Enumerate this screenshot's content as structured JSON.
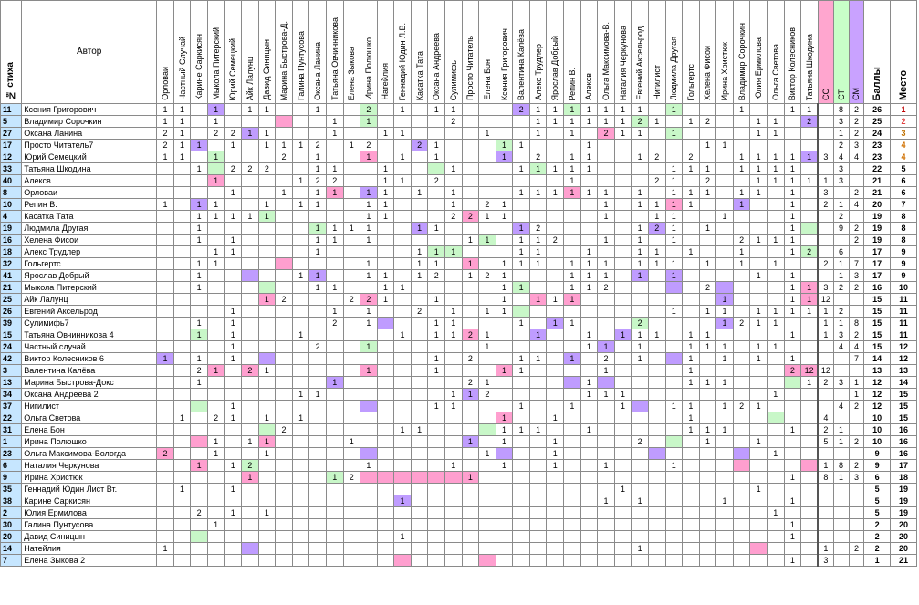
{
  "headers": {
    "num": "№ стиха",
    "author": "Автор",
    "judges": [
      "Орловаи",
      "Частный Случай",
      "Карине Саркисян",
      "Мыкола Питерский",
      "Юрий Семецкий",
      "Айк Лалунц",
      "Давид Синицын",
      "Марина Быстрова-Д.",
      "Галина Пунтусова",
      "Оксана Ланина",
      "Татьяна Овчинникова",
      "Елена Зыкова",
      "Ирина Полюшко",
      "Натейлия",
      "Геннадий Юдин Л.В.",
      "Касатка Тата",
      "Оксана Андреева",
      "Сулимифь",
      "Просто Читатель",
      "Елена Бон",
      "Ксения Григорович",
      "Валентина Калёва",
      "Алекс Трудлер",
      "Ярослав Добрый",
      "Репин В.",
      "Алексв",
      "Ольга Максимова-В.",
      "Наталия Черкунова",
      "Евгений Аксельрод",
      "Нигилист",
      "Людмила Другая",
      "Гольгертс",
      "Хелена Фисои",
      "Ирина Христюк",
      "Владимир Сорочкин",
      "Юлия Ермилова",
      "Ольга Светова",
      "Виктор Колесников",
      "Татьяна Шкодина"
    ],
    "cc": "СС",
    "ct": "СТ",
    "cm": "СМ",
    "sum": "Баллы",
    "place": "Место"
  },
  "rows": [
    {
      "n": "11",
      "a": "Ксения Григорович",
      "s": "26",
      "p": "1",
      "cc": "",
      "ct": "8",
      "cm": "2",
      "cells": {
        "0": "1",
        "1": "1",
        "3": "1",
        "5": "1",
        "6": "1",
        "9": "1",
        "12": "2",
        "14": "1",
        "16": "1",
        "17": "1",
        "21": "2",
        "22": "1",
        "23": "1",
        "24": "1",
        "25": "1",
        "26": "1",
        "27": "1",
        "28": "1",
        "30": "1",
        "34": "1",
        "37": "1",
        "38": "1"
      },
      "cls": {
        "3": "v",
        "12": "g",
        "21": "v",
        "24": "g",
        "30": "g"
      }
    },
    {
      "n": "5",
      "a": "Владимир Сорочкин",
      "s": "25",
      "p": "2",
      "cc": "",
      "ct": "3",
      "cm": "2",
      "cells": {
        "0": "1",
        "1": "1",
        "3": "1",
        "10": "1",
        "12": "1",
        "17": "2",
        "22": "1",
        "23": "1",
        "24": "1",
        "25": "1",
        "26": "1",
        "27": "1",
        "28": "2",
        "29": "1",
        "31": "1",
        "32": "2",
        "35": "1",
        "36": "1",
        "38": "2"
      },
      "cls": {
        "7": "p",
        "12": "g",
        "28": "g",
        "38": "v"
      }
    },
    {
      "n": "27",
      "a": "Оксана Ланина",
      "s": "24",
      "p": "3",
      "cc": "",
      "ct": "1",
      "cm": "2",
      "cells": {
        "0": "2",
        "1": "1",
        "3": "2",
        "4": "2",
        "5": "1",
        "6": "1",
        "10": "1",
        "13": "1",
        "14": "1",
        "19": "1",
        "22": "1",
        "24": "1",
        "26": "2",
        "27": "1",
        "28": "1",
        "30": "1",
        "35": "1",
        "36": "1"
      },
      "cls": {
        "5": "v",
        "26": "p",
        "30": "g"
      }
    },
    {
      "n": "17",
      "a": "Просто Читатель7",
      "s": "23",
      "p": "4",
      "cc": "",
      "ct": "2",
      "cm": "3",
      "cells": {
        "0": "2",
        "1": "1",
        "2": "1",
        "4": "1",
        "6": "1",
        "7": "1",
        "8": "1",
        "9": "2",
        "11": "1",
        "12": "2",
        "15": "2",
        "16": "1",
        "20": "1",
        "21": "1",
        "25": "1",
        "32": "1",
        "33": "1"
      },
      "cls": {
        "2": "v",
        "15": "v",
        "20": "g"
      }
    },
    {
      "n": "12",
      "a": "Юрий Семецкий",
      "s": "23",
      "p": "4",
      "cc": "3",
      "ct": "4",
      "cm": "4",
      "cells": {
        "0": "1",
        "1": "1",
        "3": "1",
        "7": "2",
        "9": "1",
        "12": "1",
        "14": "1",
        "16": "1",
        "20": "1",
        "22": "2",
        "24": "1",
        "25": "1",
        "28": "1",
        "29": "2",
        "31": "2",
        "34": "1",
        "35": "1",
        "36": "1",
        "37": "1",
        "38": "1"
      },
      "cls": {
        "3": "g",
        "12": "p",
        "20": "v",
        "38": "v"
      }
    },
    {
      "n": "33",
      "a": "Татьяна Шкодина",
      "s": "22",
      "p": "5",
      "cc": "",
      "ct": "3",
      "cm": "",
      "cells": {
        "2": "1",
        "4": "2",
        "5": "2",
        "6": "2",
        "9": "1",
        "10": "1",
        "13": "1",
        "17": "1",
        "21": "1",
        "22": "1",
        "23": "1",
        "24": "1",
        "25": "1",
        "30": "1",
        "31": "1",
        "32": "1",
        "34": "1",
        "35": "1",
        "36": "1",
        "37": "1"
      },
      "cls": {
        "3": "g",
        "16": "g",
        "22": "g"
      }
    },
    {
      "n": "40",
      "a": "Алексв",
      "s": "21",
      "p": "6",
      "cc": "1",
      "ct": "3",
      "cm": "",
      "cells": {
        "3": "1",
        "8": "1",
        "9": "2",
        "10": "2",
        "13": "1",
        "14": "1",
        "16": "2",
        "24": "1",
        "29": "2",
        "30": "1",
        "32": "2",
        "35": "1",
        "36": "1",
        "37": "1",
        "38": "1"
      },
      "cls": {
        "3": "p"
      }
    },
    {
      "n": "8",
      "a": "Орловаи",
      "s": "21",
      "p": "6",
      "cc": "3",
      "ct": "",
      "cm": "2",
      "cells": {
        "4": "1",
        "7": "1",
        "9": "1",
        "10": "1",
        "12": "1",
        "13": "1",
        "15": "1",
        "17": "1",
        "21": "1",
        "22": "1",
        "23": "1",
        "24": "1",
        "25": "1",
        "26": "1",
        "28": "1",
        "30": "1",
        "31": "1",
        "32": "1",
        "34": "1",
        "35": "1",
        "37": "1"
      },
      "cls": {
        "10": "p",
        "12": "v",
        "24": "p"
      }
    },
    {
      "n": "10",
      "a": "Репин В.",
      "s": "20",
      "p": "7",
      "cc": "2",
      "ct": "1",
      "cm": "4",
      "cells": {
        "0": "1",
        "2": "1",
        "3": "1",
        "6": "1",
        "8": "1",
        "9": "1",
        "12": "1",
        "13": "1",
        "17": "1",
        "19": "2",
        "20": "1",
        "26": "1",
        "28": "1",
        "29": "1",
        "30": "1",
        "31": "1",
        "34": "1",
        "37": "1"
      },
      "cls": {
        "2": "v",
        "30": "p",
        "34": "v"
      }
    },
    {
      "n": "4",
      "a": "Касатка Тата",
      "s": "19",
      "p": "8",
      "cc": "",
      "ct": "2",
      "cm": "",
      "cells": {
        "2": "1",
        "3": "1",
        "4": "1",
        "5": "1",
        "6": "1",
        "12": "1",
        "13": "1",
        "17": "2",
        "18": "2",
        "19": "1",
        "20": "1",
        "26": "1",
        "29": "1",
        "30": "1",
        "33": "1",
        "37": "1"
      },
      "cls": {
        "6": "g",
        "18": "p"
      }
    },
    {
      "n": "19",
      "a": "Людмила Другая",
      "s": "19",
      "p": "8",
      "cc": "",
      "ct": "9",
      "cm": "2",
      "cells": {
        "2": "1",
        "9": "1",
        "10": "1",
        "11": "1",
        "12": "1",
        "15": "1",
        "16": "1",
        "21": "1",
        "22": "2",
        "28": "1",
        "29": "2",
        "30": "1",
        "32": "1",
        "37": "1"
      },
      "cls": {
        "9": "g",
        "15": "v",
        "21": "v",
        "29": "v",
        "38": "g",
        "39": "g"
      }
    },
    {
      "n": "16",
      "a": "Хелена Фисои",
      "s": "19",
      "p": "8",
      "cc": "",
      "ct": "",
      "cm": "2",
      "cells": {
        "2": "1",
        "4": "1",
        "9": "1",
        "10": "1",
        "12": "1",
        "18": "1",
        "19": "1",
        "21": "1",
        "22": "1",
        "23": "2",
        "26": "1",
        "28": "1",
        "30": "1",
        "34": "2",
        "35": "1",
        "36": "1",
        "37": "1"
      },
      "cls": {
        "19": "g"
      }
    },
    {
      "n": "18",
      "a": "Алекс Трудлер",
      "s": "17",
      "p": "9",
      "cc": "",
      "ct": "6",
      "cm": "",
      "cells": {
        "3": "1",
        "4": "1",
        "9": "1",
        "15": "1",
        "16": "1",
        "17": "1",
        "21": "1",
        "22": "1",
        "25": "1",
        "28": "1",
        "29": "1",
        "31": "1",
        "34": "1",
        "37": "1",
        "38": "2"
      },
      "cls": {
        "16": "g",
        "17": "g",
        "38": "g"
      }
    },
    {
      "n": "32",
      "a": "Гольгертс",
      "s": "17",
      "p": "9",
      "cc": "2",
      "ct": "1",
      "cm": "7",
      "cells": {
        "2": "1",
        "3": "1",
        "12": "1",
        "15": "1",
        "16": "1",
        "18": "1",
        "20": "1",
        "21": "1",
        "22": "1",
        "24": "1",
        "25": "1",
        "26": "1",
        "28": "1",
        "29": "1",
        "30": "1",
        "32": "1",
        "34": "1",
        "36": "1"
      },
      "cls": {
        "7": "p",
        "18": "p"
      }
    },
    {
      "n": "41",
      "a": "Ярослав Добрый",
      "s": "17",
      "p": "9",
      "cc": "",
      "ct": "1",
      "cm": "3",
      "cells": {
        "2": "1",
        "8": "1",
        "9": "1",
        "12": "1",
        "13": "1",
        "15": "1",
        "16": "2",
        "18": "1",
        "19": "2",
        "20": "1",
        "24": "1",
        "25": "1",
        "26": "1",
        "28": "1",
        "30": "1",
        "35": "1",
        "37": "1"
      },
      "cls": {
        "5": "v",
        "9": "v",
        "28": "v",
        "30": "v"
      }
    },
    {
      "n": "21",
      "a": "Мыкола Питерский",
      "s": "16",
      "p": "10",
      "cc": "3",
      "ct": "2",
      "cm": "2",
      "cells": {
        "2": "1",
        "9": "1",
        "10": "1",
        "13": "1",
        "14": "1",
        "20": "1",
        "21": "1",
        "24": "1",
        "25": "1",
        "26": "2",
        "32": "2",
        "37": "1",
        "38": "1"
      },
      "cls": {
        "6": "g",
        "21": "g",
        "30": "v",
        "33": "v",
        "38": "p"
      }
    },
    {
      "n": "25",
      "a": "Айк Лалунц",
      "s": "15",
      "p": "11",
      "cc": "12",
      "ct": "",
      "cm": "",
      "cells": {
        "6": "1",
        "7": "2",
        "11": "2",
        "12": "2",
        "13": "1",
        "16": "1",
        "20": "1",
        "22": "1",
        "23": "1",
        "24": "1",
        "33": "1",
        "37": "1",
        "38": "1"
      },
      "cls": {
        "6": "p",
        "12": "p",
        "22": "p",
        "24": "p",
        "33": "v",
        "38": "p"
      }
    },
    {
      "n": "26",
      "a": "Евгений Аксельрод",
      "s": "15",
      "p": "11",
      "cc": "1",
      "ct": "2",
      "cm": "",
      "cells": {
        "4": "1",
        "10": "1",
        "12": "1",
        "15": "2",
        "17": "1",
        "19": "1",
        "20": "1",
        "30": "1",
        "32": "1",
        "33": "1",
        "35": "1",
        "36": "1",
        "37": "1",
        "38": "1"
      },
      "cls": {
        "21": "g"
      }
    },
    {
      "n": "39",
      "a": "Сулимифь7",
      "s": "15",
      "p": "11",
      "cc": "1",
      "ct": "1",
      "cm": "8",
      "cells": {
        "2": "1",
        "4": "1",
        "10": "2",
        "12": "1",
        "16": "1",
        "17": "1",
        "21": "1",
        "23": "1",
        "24": "1",
        "28": "2",
        "33": "1",
        "34": "2",
        "35": "1",
        "36": "1"
      },
      "cls": {
        "13": "v",
        "23": "v",
        "28": "g",
        "33": "v",
        "39": "v"
      }
    },
    {
      "n": "15",
      "a": "Татьяна Овчинникова 4",
      "s": "15",
      "p": "11",
      "cc": "1",
      "ct": "3",
      "cm": "2",
      "cells": {
        "2": "1",
        "4": "1",
        "8": "1",
        "14": "1",
        "16": "1",
        "17": "1",
        "18": "2",
        "19": "1",
        "22": "1",
        "25": "1",
        "27": "1",
        "28": "1",
        "29": "1",
        "31": "1",
        "32": "1",
        "37": "1"
      },
      "cls": {
        "2": "g",
        "18": "p",
        "22": "v",
        "27": "v"
      }
    },
    {
      "n": "24",
      "a": "Частный случай",
      "s": "15",
      "p": "12",
      "cc": "",
      "ct": "4",
      "cm": "4",
      "cells": {
        "4": "1",
        "9": "2",
        "12": "1",
        "19": "1",
        "25": "1",
        "26": "1",
        "28": "1",
        "31": "1",
        "32": "1",
        "33": "1",
        "35": "1",
        "36": "1"
      },
      "cls": {
        "12": "g",
        "26": "v"
      }
    },
    {
      "n": "42",
      "a": "Виктор Колесников 6",
      "s": "14",
      "p": "12",
      "cc": "",
      "ct": "",
      "cm": "7",
      "cells": {
        "0": "1",
        "2": "1",
        "4": "1",
        "16": "1",
        "18": "2",
        "21": "1",
        "22": "1",
        "24": "1",
        "26": "2",
        "28": "1",
        "31": "1",
        "33": "1",
        "35": "1",
        "37": "1"
      },
      "cls": {
        "0": "v",
        "6": "v",
        "24": "v",
        "30": "v"
      }
    },
    {
      "n": "3",
      "a": "Валентина Калёва",
      "s": "13",
      "p": "13",
      "cc": "12",
      "ct": "",
      "cm": "",
      "cells": {
        "2": "2",
        "3": "1",
        "5": "2",
        "6": "1",
        "12": "1",
        "16": "1",
        "20": "1",
        "21": "1",
        "26": "1",
        "31": "1",
        "37": "2",
        "38": "12"
      },
      "cls": {
        "3": "p",
        "5": "p",
        "12": "p",
        "20": "p",
        "37": "p",
        "38": "p"
      }
    },
    {
      "n": "13",
      "a": "Марина Быстрова-Докс",
      "s": "12",
      "p": "14",
      "cc": "2",
      "ct": "3",
      "cm": "1",
      "cells": {
        "2": "1",
        "10": "1",
        "18": "2",
        "19": "1",
        "25": "1",
        "31": "1",
        "32": "1",
        "33": "1",
        "38": "1"
      },
      "cls": {
        "10": "v",
        "24": "v",
        "26": "v",
        "37": "g"
      }
    },
    {
      "n": "34",
      "a": "Оксана Андреева 2",
      "s": "12",
      "p": "15",
      "cc": "",
      "ct": "",
      "cm": "1",
      "cells": {
        "8": "1",
        "9": "1",
        "17": "1",
        "18": "1",
        "19": "2",
        "25": "1",
        "26": "1",
        "27": "1",
        "36": "1"
      },
      "cls": {
        "18": "v"
      }
    },
    {
      "n": "37",
      "a": "Нигилист",
      "s": "12",
      "p": "15",
      "cc": "",
      "ct": "4",
      "cm": "2",
      "cells": {
        "4": "1",
        "16": "1",
        "17": "1",
        "21": "1",
        "24": "1",
        "27": "1",
        "30": "1",
        "31": "1",
        "33": "1",
        "34": "2",
        "35": "1"
      },
      "cls": {
        "2": "g",
        "12": "v",
        "28": "v"
      }
    },
    {
      "n": "22",
      "a": "Ольга Светова",
      "s": "10",
      "p": "15",
      "cc": "4",
      "ct": "",
      "cm": "",
      "cells": {
        "1": "1",
        "3": "2",
        "4": "1",
        "6": "1",
        "8": "1",
        "20": "1",
        "23": "1",
        "31": "1"
      },
      "cls": {
        "20": "p",
        "36": "g"
      }
    },
    {
      "n": "31",
      "a": "Елена Бон",
      "s": "10",
      "p": "16",
      "cc": "2",
      "ct": "1",
      "cm": "",
      "cells": {
        "7": "2",
        "14": "1",
        "15": "1",
        "20": "1",
        "21": "1",
        "22": "1",
        "25": "1",
        "31": "1",
        "32": "1",
        "33": "1",
        "37": "1"
      },
      "cls": {
        "6": "g",
        "19": "g"
      }
    },
    {
      "n": "1",
      "a": "Ирина Полюшко",
      "s": "10",
      "p": "16",
      "cc": "5",
      "ct": "1",
      "cm": "2",
      "cells": {
        "3": "1",
        "5": "1",
        "6": "1",
        "11": "1",
        "18": "1",
        "20": "1",
        "23": "1",
        "28": "2",
        "32": "1",
        "35": "1"
      },
      "cls": {
        "2": "p",
        "6": "p",
        "18": "v",
        "30": "g"
      }
    },
    {
      "n": "23",
      "a": "Ольга Максимова-Вологда",
      "s": "9",
      "p": "16",
      "cc": "",
      "ct": "",
      "cm": "",
      "cells": {
        "0": "2",
        "3": "1",
        "6": "1",
        "19": "1",
        "23": "1",
        "36": "1"
      },
      "cls": {
        "0": "p",
        "12": "v",
        "20": "v",
        "29": "v",
        "34": "v"
      }
    },
    {
      "n": "6",
      "a": "Наталия Черкунова",
      "s": "9",
      "p": "17",
      "cc": "1",
      "ct": "8",
      "cm": "2",
      "cells": {
        "2": "1",
        "4": "1",
        "5": "2",
        "12": "1",
        "17": "1",
        "20": "1",
        "23": "1",
        "26": "1",
        "30": "1"
      },
      "cls": {
        "2": "p",
        "5": "g",
        "34": "p",
        "38": "p"
      }
    },
    {
      "n": "9",
      "a": "Ирина Христюк",
      "s": "6",
      "p": "18",
      "cc": "8",
      "ct": "1",
      "cm": "3",
      "cells": {
        "5": "1",
        "10": "1",
        "11": "2",
        "18": "1",
        "37": "1"
      },
      "cls": {
        "5": "p",
        "10": "g",
        "12": "p",
        "13": "p",
        "14": "p",
        "15": "p",
        "16": "p",
        "17": "p",
        "18": "p"
      }
    },
    {
      "n": "35",
      "a": "Геннадий Юдин Лист Вт.",
      "s": "5",
      "p": "19",
      "cc": "",
      "ct": "",
      "cm": "",
      "cells": {
        "1": "1",
        "4": "1",
        "27": "1",
        "35": "1"
      },
      "cls": {}
    },
    {
      "n": "38",
      "a": "Карине Саркисян",
      "s": "5",
      "p": "19",
      "cc": "",
      "ct": "",
      "cm": "",
      "cells": {
        "14": "1",
        "26": "1",
        "28": "1",
        "33": "1",
        "37": "1"
      },
      "cls": {
        "14": "v"
      }
    },
    {
      "n": "2",
      "a": "Юлия Ермилова",
      "s": "5",
      "p": "19",
      "cc": "",
      "ct": "",
      "cm": "",
      "cells": {
        "2": "2",
        "4": "1",
        "6": "1",
        "36": "1"
      },
      "cls": {}
    },
    {
      "n": "30",
      "a": "Галина Пунтусова",
      "s": "2",
      "p": "20",
      "cc": "",
      "ct": "",
      "cm": "",
      "cells": {
        "3": "1",
        "37": "1"
      },
      "cls": {}
    },
    {
      "n": "20",
      "a": "Давид Синицын",
      "s": "2",
      "p": "20",
      "cc": "",
      "ct": "",
      "cm": "",
      "cells": {
        "14": "1",
        "37": "1"
      },
      "cls": {
        "2": "g"
      }
    },
    {
      "n": "14",
      "a": "Натейлия",
      "s": "2",
      "p": "20",
      "cc": "1",
      "ct": "",
      "cm": "2",
      "cells": {
        "0": "1",
        "28": "1"
      },
      "cls": {
        "5": "v",
        "35": "p"
      }
    },
    {
      "n": "7",
      "a": "Елена Зыкова 2",
      "s": "1",
      "p": "21",
      "cc": "3",
      "ct": "",
      "cm": "",
      "cells": {
        "37": "1"
      },
      "cls": {
        "14": "p",
        "19": "p"
      }
    }
  ]
}
